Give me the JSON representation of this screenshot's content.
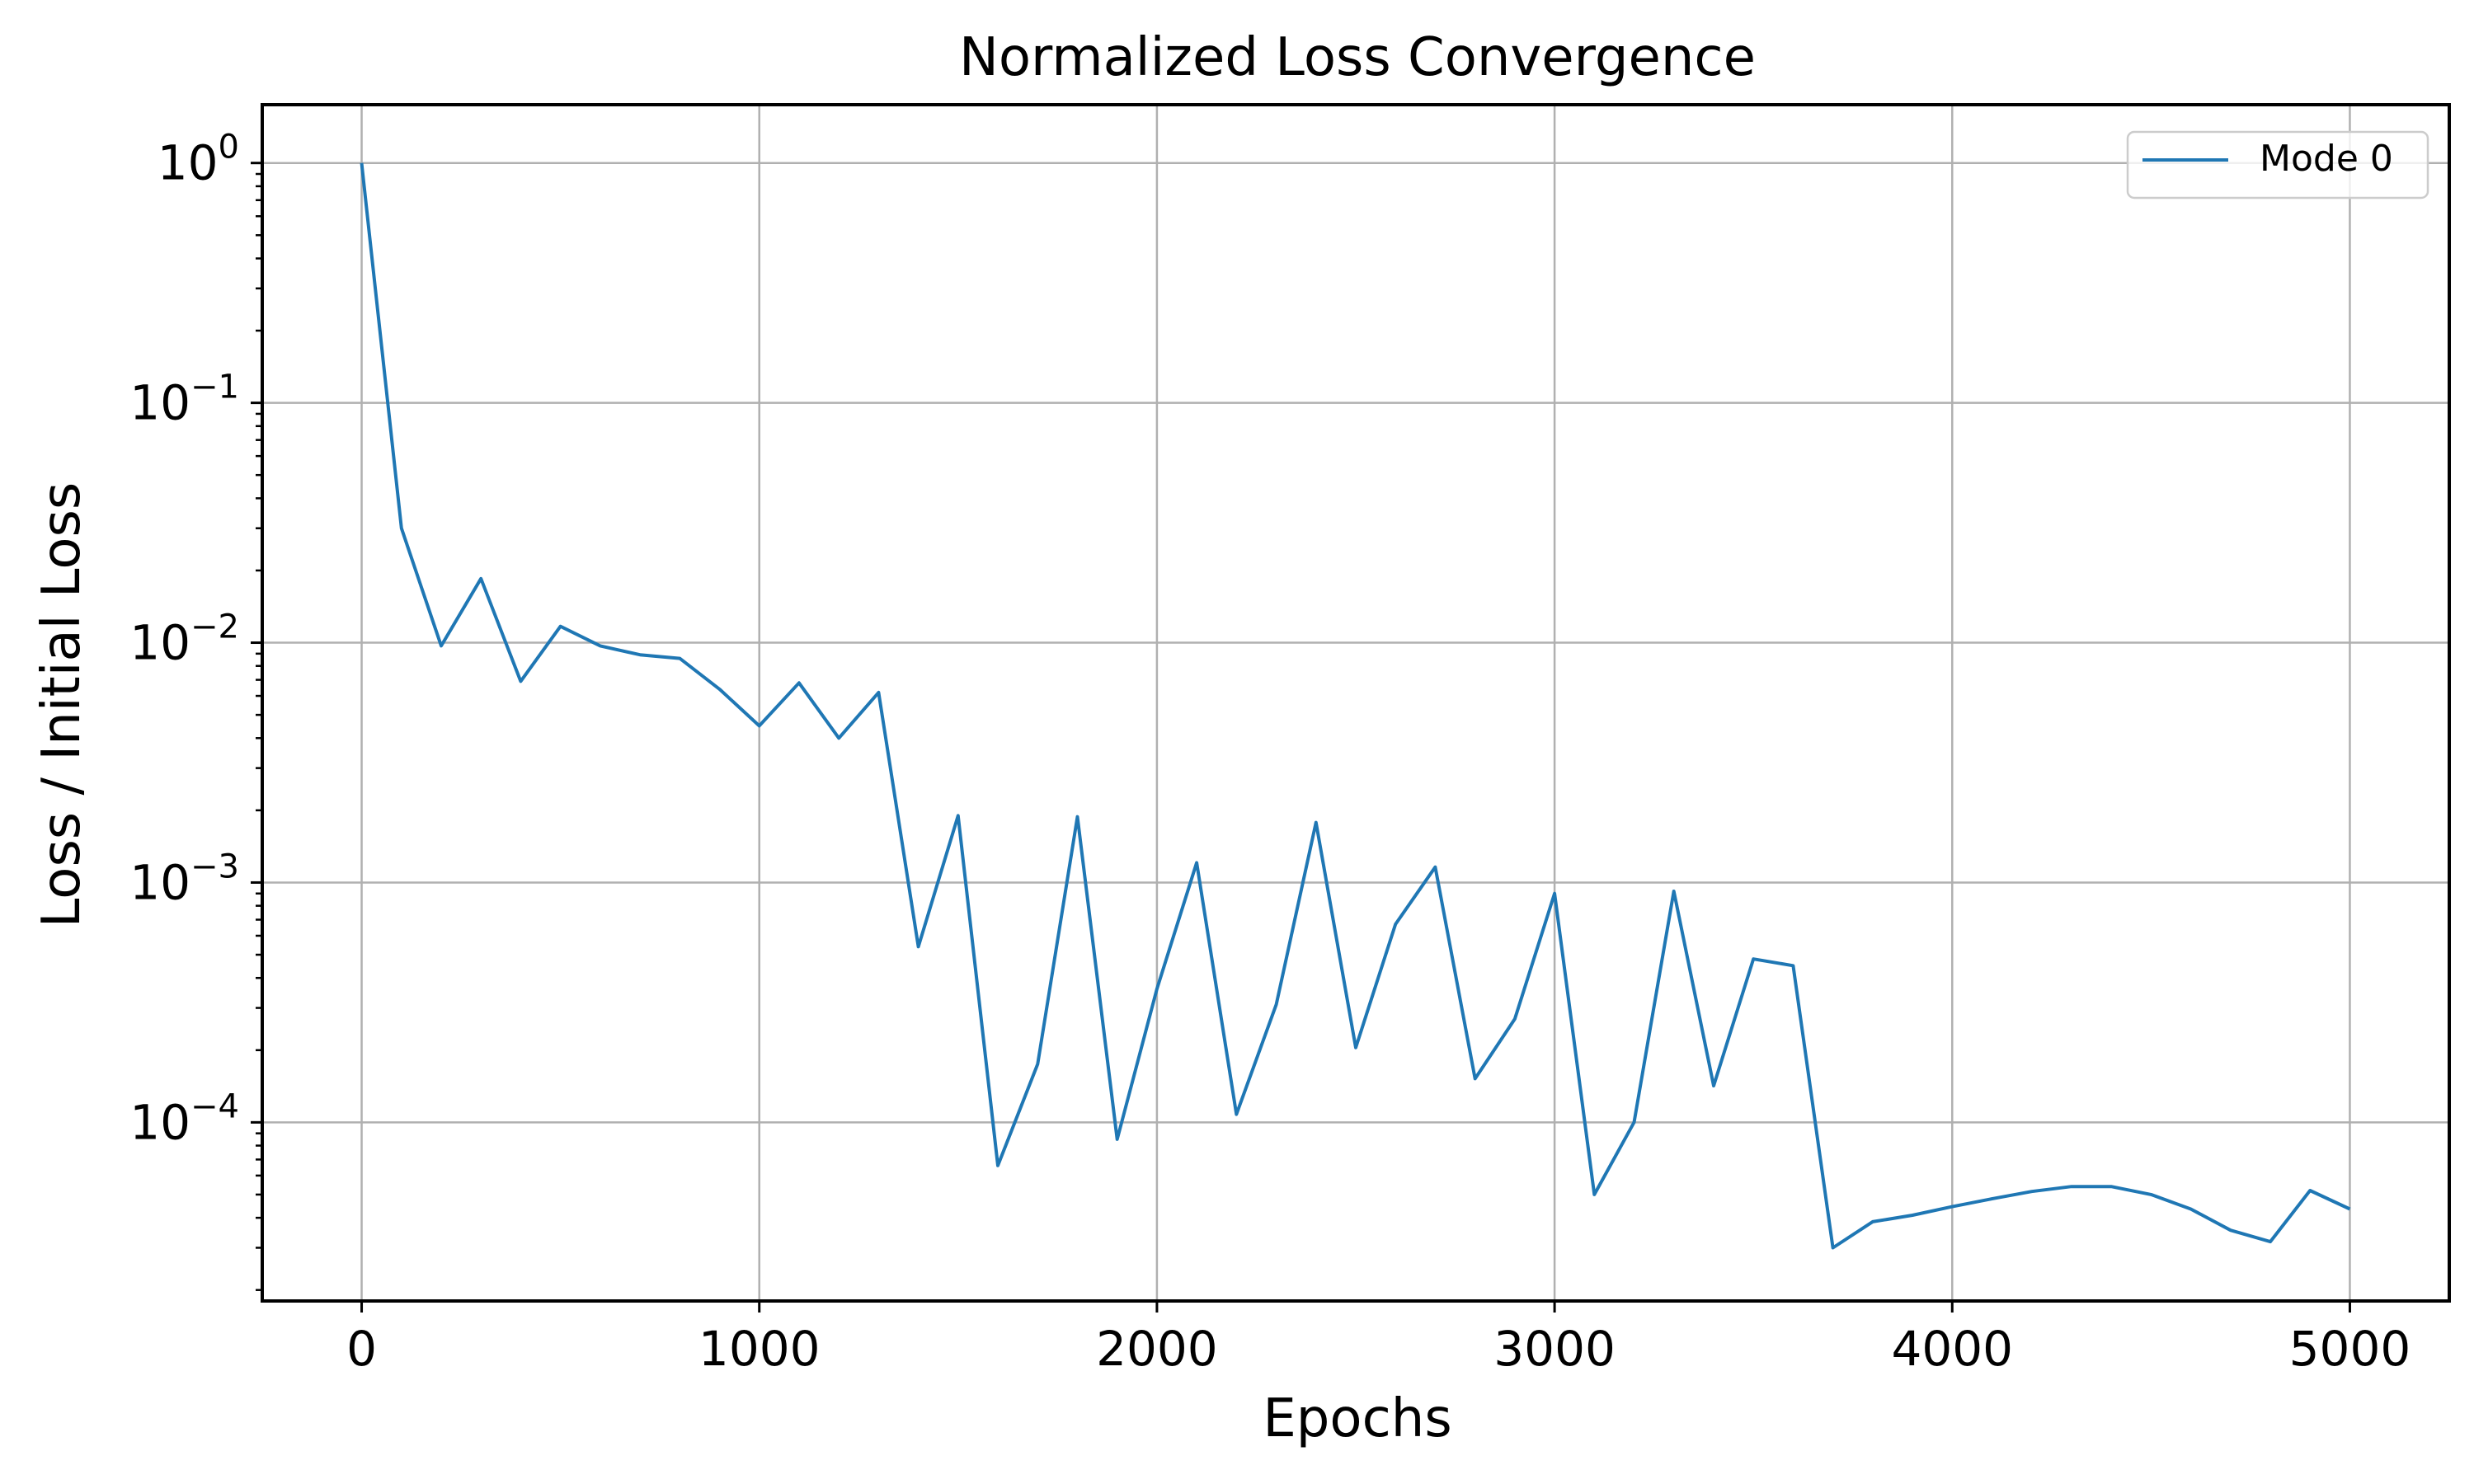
{
  "chart_data": {
    "type": "line",
    "title": "Normalized Loss Convergence",
    "xlabel": "Epochs",
    "ylabel": "Loss / Initial Loss",
    "xlim": [
      -250,
      5250
    ],
    "ylim": [
      1.8e-05,
      1.75
    ],
    "yscale": "log",
    "grid": true,
    "legend_position": "top-right",
    "xticks": [
      0,
      1000,
      2000,
      3000,
      4000,
      5000
    ],
    "xtick_labels": [
      "0",
      "1000",
      "2000",
      "3000",
      "4000",
      "5000"
    ],
    "yticks": [
      {
        "value": 1,
        "base": "10",
        "exp": "0"
      },
      {
        "value": 0.1,
        "base": "10",
        "exp": "−1"
      },
      {
        "value": 0.01,
        "base": "10",
        "exp": "−2"
      },
      {
        "value": 0.001,
        "base": "10",
        "exp": "−3"
      },
      {
        "value": 0.0001,
        "base": "10",
        "exp": "−4"
      }
    ],
    "series": [
      {
        "name": "Mode 0",
        "color": "#1f77b4",
        "x": [
          0,
          100,
          200,
          300,
          400,
          500,
          600,
          700,
          800,
          900,
          1000,
          1100,
          1200,
          1300,
          1400,
          1500,
          1600,
          1700,
          1800,
          1900,
          2000,
          2100,
          2200,
          2300,
          2400,
          2500,
          2600,
          2700,
          2800,
          2900,
          3000,
          3100,
          3200,
          3300,
          3400,
          3500,
          3600,
          3700,
          3800,
          3900,
          4000,
          4100,
          4200,
          4300,
          4400,
          4500,
          4600,
          4700,
          4800,
          4900,
          5000
        ],
        "y": [
          1.0,
          0.03,
          0.0097,
          0.0185,
          0.0069,
          0.0117,
          0.0097,
          0.0089,
          0.0086,
          0.0064,
          0.0045,
          0.0068,
          0.004,
          0.0062,
          0.00054,
          0.0019,
          6.6e-05,
          0.000175,
          0.00188,
          8.5e-05,
          0.00036,
          0.00121,
          0.000108,
          0.00031,
          0.00178,
          0.000205,
          0.00067,
          0.00116,
          0.000152,
          0.00027,
          0.0009,
          5e-05,
          0.0001,
          0.00092,
          0.000142,
          0.00048,
          0.00045,
          3e-05,
          3.85e-05,
          4.1e-05,
          4.45e-05,
          4.8e-05,
          5.15e-05,
          5.4e-05,
          5.4e-05,
          5e-05,
          4.35e-05,
          3.55e-05,
          3.18e-05,
          5.2e-05,
          4.35e-05
        ]
      }
    ]
  }
}
